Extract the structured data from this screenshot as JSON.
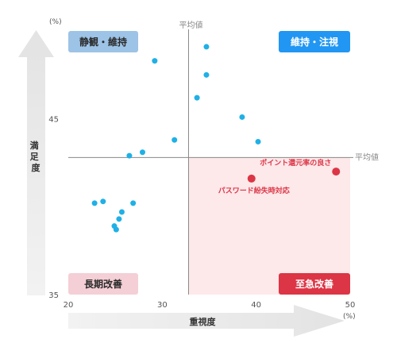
{
  "chart_data": {
    "type": "scatter",
    "xlabel": "重視度",
    "ylabel": "満足度",
    "x_unit": "(%)",
    "y_unit": "(%)",
    "xlim": [
      20,
      50
    ],
    "ylim": [
      35,
      50
    ],
    "x_ticks": [
      "20",
      "30",
      "40",
      "50"
    ],
    "y_ticks": [
      "35",
      "45"
    ],
    "reference_lines": {
      "x": 32.8,
      "y": 42.8,
      "label": "平均値"
    },
    "quadrants": {
      "top_left": {
        "label": "静観・維持",
        "color": "#9dc3e6"
      },
      "top_right": {
        "label": "維持・注視",
        "color": "#2196f3"
      },
      "bottom_left": {
        "label": "長期改善",
        "color": "#f4cfd6"
      },
      "bottom_right": {
        "label": "至急改善",
        "color": "#dc3545"
      }
    },
    "highlight_region_color": "#fde8ea",
    "point_color": "#1fb0e6",
    "highlight_color": "#dc3545",
    "points": [
      {
        "x": 29.2,
        "y": 48.3
      },
      {
        "x": 34.7,
        "y": 49.1
      },
      {
        "x": 34.7,
        "y": 47.5
      },
      {
        "x": 33.7,
        "y": 46.2
      },
      {
        "x": 38.5,
        "y": 45.1
      },
      {
        "x": 40.2,
        "y": 43.7
      },
      {
        "x": 31.3,
        "y": 43.8
      },
      {
        "x": 27.9,
        "y": 43.1
      },
      {
        "x": 26.5,
        "y": 42.9
      },
      {
        "x": 22.8,
        "y": 40.2
      },
      {
        "x": 23.7,
        "y": 40.3
      },
      {
        "x": 26.9,
        "y": 40.2
      },
      {
        "x": 25.7,
        "y": 39.7
      },
      {
        "x": 25.4,
        "y": 39.3
      },
      {
        "x": 24.9,
        "y": 38.9
      },
      {
        "x": 25.1,
        "y": 38.7
      }
    ],
    "highlighted": [
      {
        "label": "ポイント還元率の良さ",
        "x": 48.5,
        "y": 42.0
      },
      {
        "label": "パスワード紛失時対応",
        "x": 39.5,
        "y": 41.6
      }
    ]
  }
}
